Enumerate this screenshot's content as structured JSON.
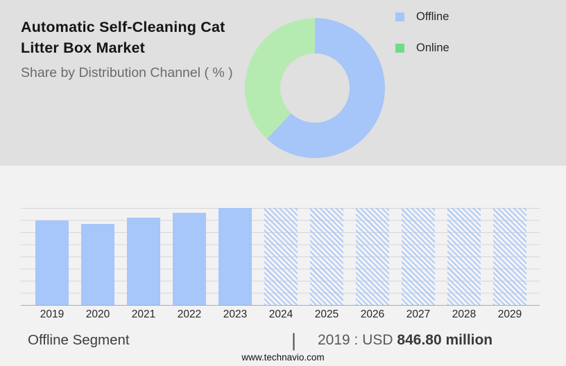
{
  "header": {
    "title": "Automatic Self-Cleaning Cat Litter Box Market",
    "subtitle": "Share by Distribution Channel ( % )"
  },
  "caption": {
    "segment_label": "Offline Segment",
    "separator": "|",
    "value_prefix": "2019 : USD",
    "value_bold": "846.80 million"
  },
  "footer": {
    "website": "www.technavio.com"
  },
  "colors": {
    "bar_blue": "#a7c6f9",
    "hatch_blue": "#a9c7f7",
    "donut_blue": "#a6c5f8",
    "donut_green": "#b5ebb1",
    "legend_blue": "#a6c5f8",
    "legend_green": "#6edc8b"
  },
  "chart_data": [
    {
      "type": "pie",
      "donut": true,
      "title": "Share by Distribution Channel ( % )",
      "labels": [
        "Offline",
        "Online"
      ],
      "values": [
        62,
        38
      ],
      "colors": [
        "#a6c5f8",
        "#b5ebb1"
      ],
      "legend_colors": [
        "#a6c5f8",
        "#6edc8b"
      ],
      "legend_position": "right",
      "start_angle_deg": 0,
      "direction": "clockwise"
    },
    {
      "type": "bar",
      "title": "Offline Segment",
      "categories": [
        "2019",
        "2020",
        "2021",
        "2022",
        "2023",
        "2024",
        "2025",
        "2026",
        "2027",
        "2028",
        "2029"
      ],
      "values": [
        846.8,
        812,
        874,
        923,
        971,
        null,
        null,
        null,
        null,
        null,
        null
      ],
      "units": "USD million",
      "annotation": "2019 : USD 846.80 million",
      "forecast_categories": [
        "2024",
        "2025",
        "2026",
        "2027",
        "2028",
        "2029"
      ],
      "forecast_style": "hatched-full-height",
      "bar_color": "#a7c6f9",
      "hatch_color": "#a9c7f7",
      "grid": true,
      "value_axis_labels": false,
      "xlabel": "",
      "ylabel": ""
    }
  ]
}
